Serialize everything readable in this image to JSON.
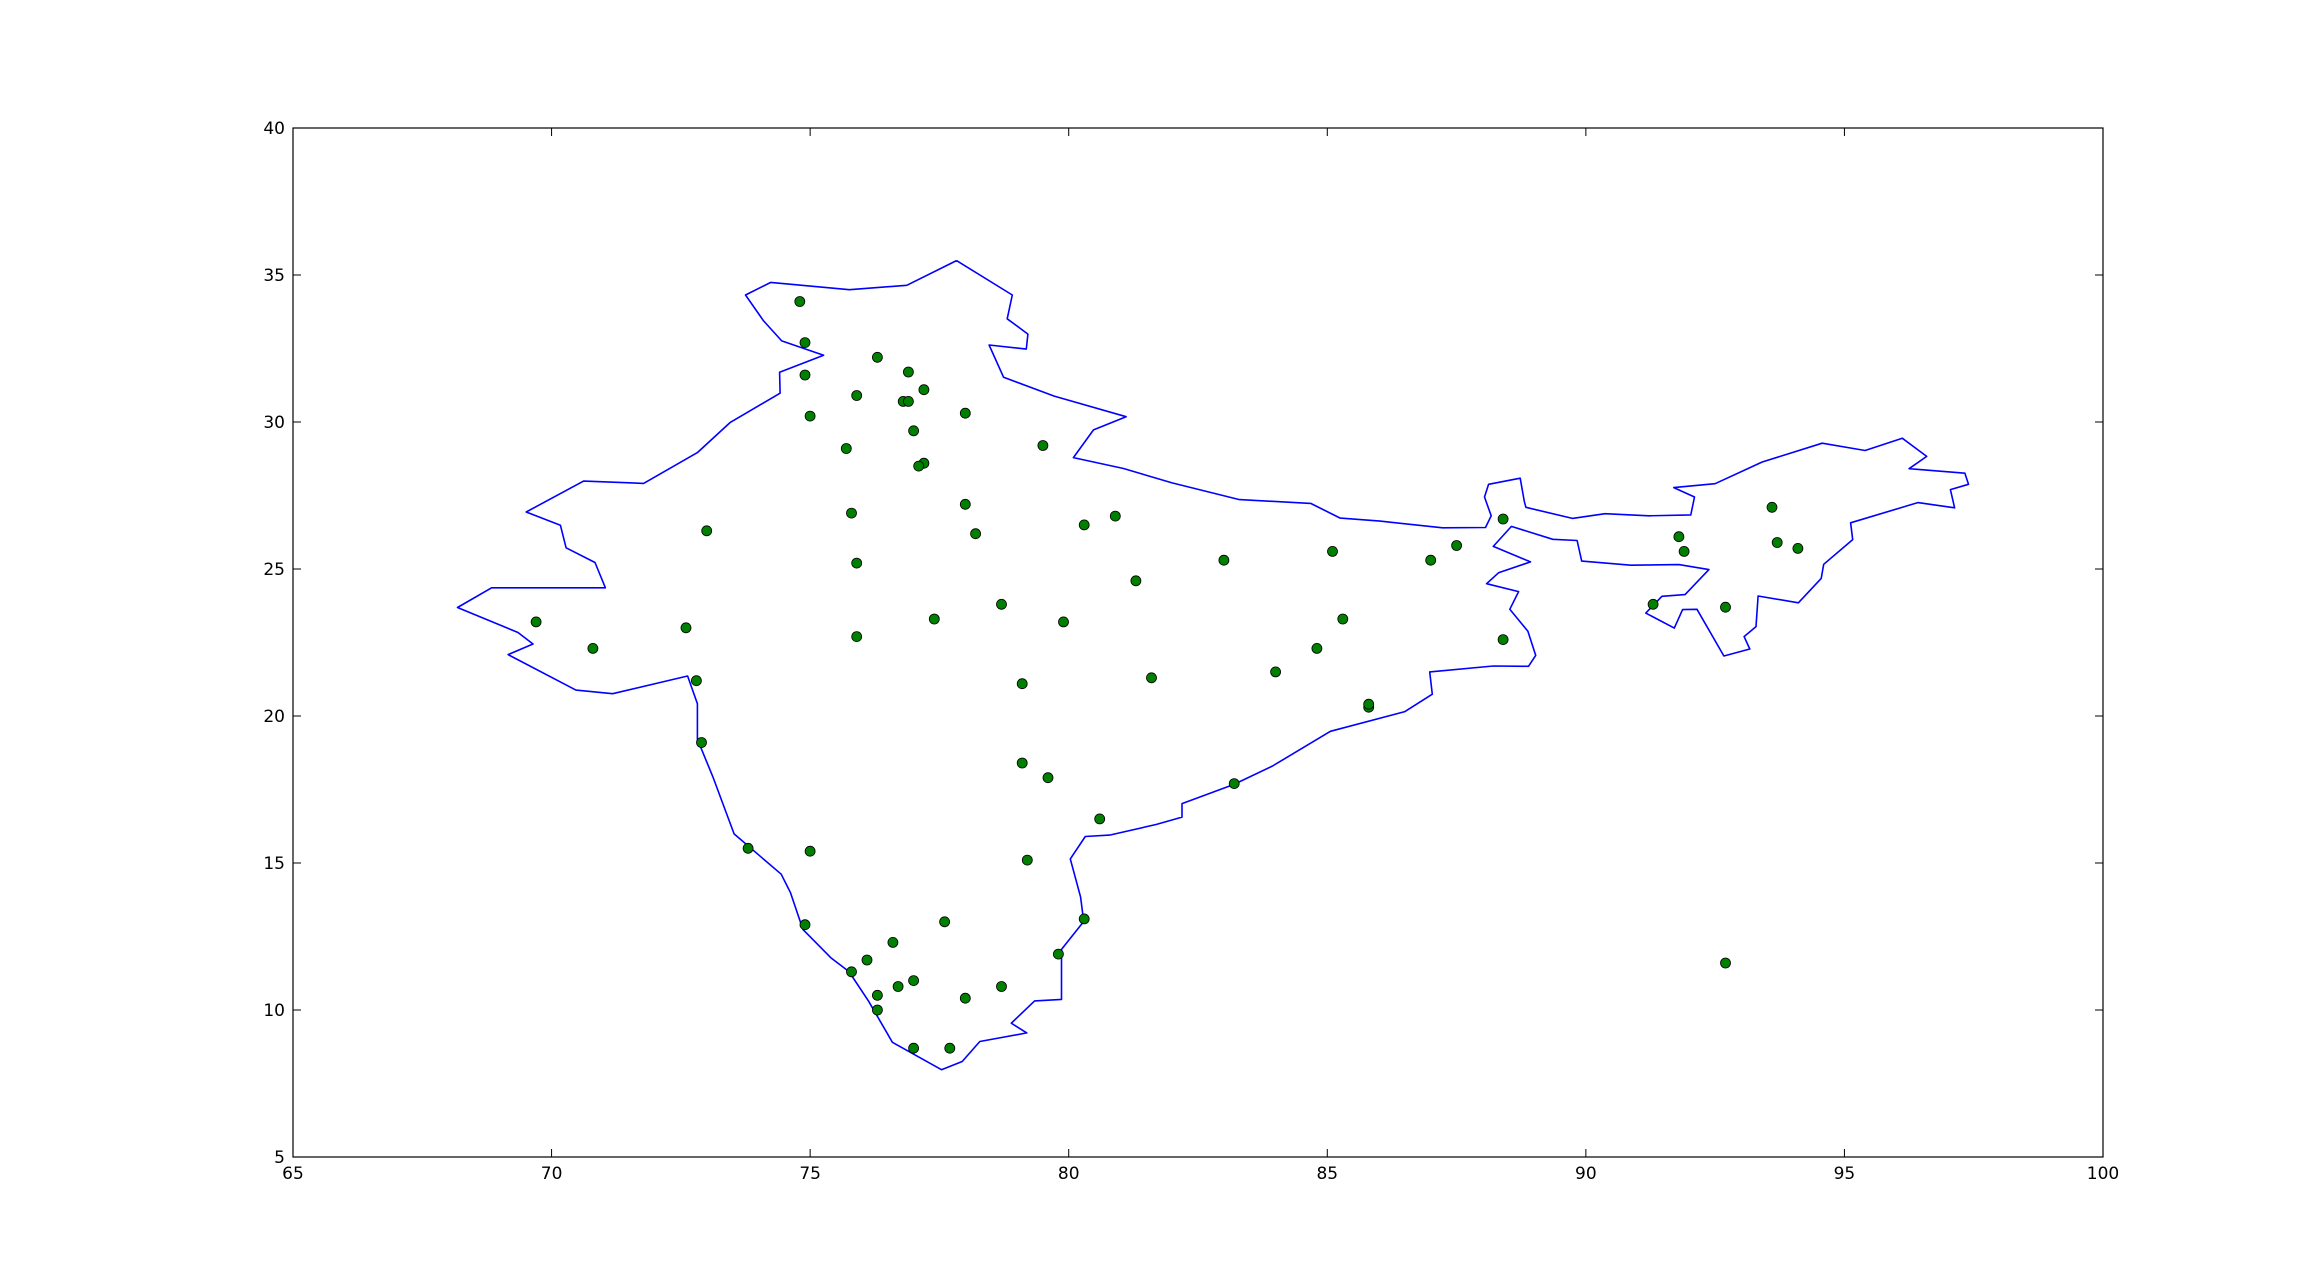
{
  "chart_data": {
    "type": "scatter",
    "title": "",
    "xlabel": "",
    "ylabel": "",
    "xlim": [
      65,
      100
    ],
    "ylim": [
      5,
      40
    ],
    "xticks": [
      65,
      70,
      75,
      80,
      85,
      90,
      95,
      100
    ],
    "yticks": [
      5,
      10,
      15,
      20,
      25,
      30,
      35,
      40
    ],
    "grid": false,
    "legend": "none",
    "colors": {
      "outline": "#0000ff",
      "points": "#008000",
      "point_edge": "#000000",
      "axes": "#000000"
    },
    "outline": {
      "mainland": [
        [
          77.83,
          35.49
        ],
        [
          78.91,
          34.32
        ],
        [
          78.81,
          33.51
        ],
        [
          79.21,
          32.99
        ],
        [
          79.18,
          32.48
        ],
        [
          78.46,
          32.62
        ],
        [
          78.74,
          31.52
        ],
        [
          79.72,
          30.88
        ],
        [
          81.11,
          30.18
        ],
        [
          80.48,
          29.73
        ],
        [
          80.09,
          28.79
        ],
        [
          81.06,
          28.42
        ],
        [
          82.0,
          27.93
        ],
        [
          83.3,
          27.36
        ],
        [
          84.68,
          27.23
        ],
        [
          85.25,
          26.73
        ],
        [
          86.02,
          26.63
        ],
        [
          87.23,
          26.4
        ],
        [
          88.06,
          26.41
        ],
        [
          88.17,
          26.81
        ],
        [
          88.04,
          27.45
        ],
        [
          88.12,
          27.88
        ],
        [
          88.73,
          28.09
        ],
        [
          88.81,
          27.3
        ],
        [
          88.84,
          27.1
        ],
        [
          89.74,
          26.72
        ],
        [
          90.37,
          26.88
        ],
        [
          91.22,
          26.81
        ],
        [
          92.03,
          26.84
        ],
        [
          92.1,
          27.45
        ],
        [
          91.7,
          27.77
        ],
        [
          92.5,
          27.9
        ],
        [
          93.41,
          28.64
        ],
        [
          94.57,
          29.28
        ],
        [
          95.4,
          29.03
        ],
        [
          96.12,
          29.45
        ],
        [
          96.59,
          28.83
        ],
        [
          96.25,
          28.41
        ],
        [
          97.33,
          28.26
        ],
        [
          97.4,
          27.88
        ],
        [
          97.05,
          27.7
        ],
        [
          97.13,
          27.08
        ],
        [
          96.42,
          27.26
        ],
        [
          95.12,
          26.57
        ],
        [
          95.16,
          26.0
        ],
        [
          94.6,
          25.16
        ],
        [
          94.55,
          24.68
        ],
        [
          94.11,
          23.85
        ],
        [
          93.33,
          24.08
        ],
        [
          93.29,
          23.04
        ],
        [
          93.06,
          22.7
        ],
        [
          93.17,
          22.28
        ],
        [
          92.67,
          22.04
        ],
        [
          92.15,
          23.63
        ],
        [
          91.87,
          23.62
        ],
        [
          91.71,
          22.99
        ],
        [
          91.16,
          23.5
        ],
        [
          91.47,
          24.07
        ],
        [
          91.92,
          24.13
        ],
        [
          92.38,
          24.98
        ],
        [
          91.8,
          25.15
        ],
        [
          90.87,
          25.13
        ],
        [
          89.92,
          25.27
        ],
        [
          89.83,
          25.97
        ],
        [
          89.36,
          26.01
        ],
        [
          88.56,
          26.45
        ],
        [
          88.21,
          25.77
        ],
        [
          88.93,
          25.24
        ],
        [
          88.31,
          24.87
        ],
        [
          88.08,
          24.5
        ],
        [
          88.7,
          24.23
        ],
        [
          88.53,
          23.63
        ],
        [
          88.88,
          22.88
        ],
        [
          89.03,
          22.06
        ],
        [
          88.89,
          21.69
        ],
        [
          88.21,
          21.7
        ],
        [
          86.98,
          21.5
        ],
        [
          87.03,
          20.74
        ],
        [
          86.5,
          20.15
        ],
        [
          85.06,
          19.48
        ],
        [
          83.94,
          18.3
        ],
        [
          83.19,
          17.67
        ],
        [
          82.19,
          17.02
        ],
        [
          82.19,
          16.56
        ],
        [
          81.69,
          16.31
        ],
        [
          80.79,
          15.95
        ],
        [
          80.32,
          15.9
        ],
        [
          80.03,
          15.14
        ],
        [
          80.23,
          13.84
        ],
        [
          80.29,
          13.01
        ],
        [
          79.86,
          12.06
        ],
        [
          79.86,
          10.36
        ],
        [
          79.34,
          10.31
        ],
        [
          78.89,
          9.55
        ],
        [
          79.19,
          9.22
        ],
        [
          78.28,
          8.93
        ],
        [
          77.94,
          8.25
        ],
        [
          77.54,
          7.97
        ],
        [
          76.59,
          8.9
        ],
        [
          76.13,
          10.3
        ],
        [
          75.75,
          11.31
        ],
        [
          75.4,
          11.78
        ],
        [
          74.86,
          12.74
        ],
        [
          74.62,
          13.99
        ],
        [
          74.44,
          14.62
        ],
        [
          73.53,
          15.99
        ],
        [
          73.12,
          17.93
        ],
        [
          72.82,
          19.21
        ],
        [
          72.82,
          20.42
        ],
        [
          72.63,
          21.36
        ],
        [
          71.18,
          20.76
        ],
        [
          70.47,
          20.88
        ],
        [
          69.16,
          22.09
        ],
        [
          69.64,
          22.45
        ],
        [
          69.35,
          22.84
        ],
        [
          68.18,
          23.69
        ],
        [
          68.84,
          24.36
        ],
        [
          71.04,
          24.36
        ],
        [
          70.84,
          25.22
        ],
        [
          70.28,
          25.72
        ],
        [
          70.17,
          26.49
        ],
        [
          69.51,
          26.94
        ],
        [
          70.62,
          27.99
        ],
        [
          71.78,
          27.91
        ],
        [
          72.82,
          28.96
        ],
        [
          73.45,
          29.98
        ],
        [
          74.42,
          30.98
        ],
        [
          74.41,
          31.69
        ],
        [
          75.26,
          32.27
        ],
        [
          74.45,
          32.76
        ],
        [
          74.1,
          33.44
        ],
        [
          73.75,
          34.32
        ],
        [
          74.24,
          34.75
        ],
        [
          75.76,
          34.5
        ],
        [
          76.87,
          34.65
        ],
        [
          77.83,
          35.49
        ]
      ]
    },
    "points": [
      [
        74.8,
        34.1
      ],
      [
        74.9,
        32.7
      ],
      [
        74.9,
        31.6
      ],
      [
        75.0,
        30.2
      ],
      [
        75.9,
        30.9
      ],
      [
        76.3,
        32.2
      ],
      [
        76.9,
        31.7
      ],
      [
        77.2,
        31.1
      ],
      [
        76.8,
        30.7
      ],
      [
        76.9,
        30.7
      ],
      [
        77.0,
        29.7
      ],
      [
        78.0,
        30.3
      ],
      [
        79.5,
        29.2
      ],
      [
        75.7,
        29.1
      ],
      [
        77.2,
        28.6
      ],
      [
        77.1,
        28.5
      ],
      [
        75.8,
        26.9
      ],
      [
        78.0,
        27.2
      ],
      [
        78.2,
        26.2
      ],
      [
        80.3,
        26.5
      ],
      [
        80.9,
        26.8
      ],
      [
        73.0,
        26.3
      ],
      [
        75.9,
        25.2
      ],
      [
        81.3,
        24.6
      ],
      [
        83.0,
        25.3
      ],
      [
        85.1,
        25.6
      ],
      [
        87.0,
        25.3
      ],
      [
        87.5,
        25.8
      ],
      [
        88.4,
        26.7
      ],
      [
        69.7,
        23.2
      ],
      [
        70.8,
        22.3
      ],
      [
        72.6,
        23.0
      ],
      [
        72.8,
        21.2
      ],
      [
        75.9,
        22.7
      ],
      [
        77.4,
        23.3
      ],
      [
        78.7,
        23.8
      ],
      [
        79.9,
        23.2
      ],
      [
        79.1,
        21.1
      ],
      [
        81.6,
        21.3
      ],
      [
        84.0,
        21.5
      ],
      [
        84.8,
        22.3
      ],
      [
        85.3,
        23.3
      ],
      [
        85.8,
        20.3
      ],
      [
        85.8,
        20.4
      ],
      [
        88.4,
        22.6
      ],
      [
        72.9,
        19.1
      ],
      [
        79.1,
        18.4
      ],
      [
        79.6,
        17.9
      ],
      [
        80.6,
        16.5
      ],
      [
        83.2,
        17.7
      ],
      [
        73.8,
        15.5
      ],
      [
        75.0,
        15.4
      ],
      [
        79.2,
        15.1
      ],
      [
        74.9,
        12.9
      ],
      [
        76.1,
        11.7
      ],
      [
        75.8,
        11.3
      ],
      [
        76.6,
        12.3
      ],
      [
        77.6,
        13.0
      ],
      [
        80.3,
        13.1
      ],
      [
        79.8,
        11.9
      ],
      [
        76.3,
        10.5
      ],
      [
        76.3,
        10.0
      ],
      [
        76.7,
        10.8
      ],
      [
        77.0,
        11.0
      ],
      [
        78.0,
        10.4
      ],
      [
        78.7,
        10.8
      ],
      [
        77.0,
        8.7
      ],
      [
        77.7,
        8.7
      ],
      [
        91.8,
        26.1
      ],
      [
        91.9,
        25.6
      ],
      [
        93.6,
        27.1
      ],
      [
        93.7,
        25.9
      ],
      [
        94.1,
        25.7
      ],
      [
        91.3,
        23.8
      ],
      [
        92.7,
        23.7
      ],
      [
        92.7,
        11.6
      ]
    ]
  }
}
